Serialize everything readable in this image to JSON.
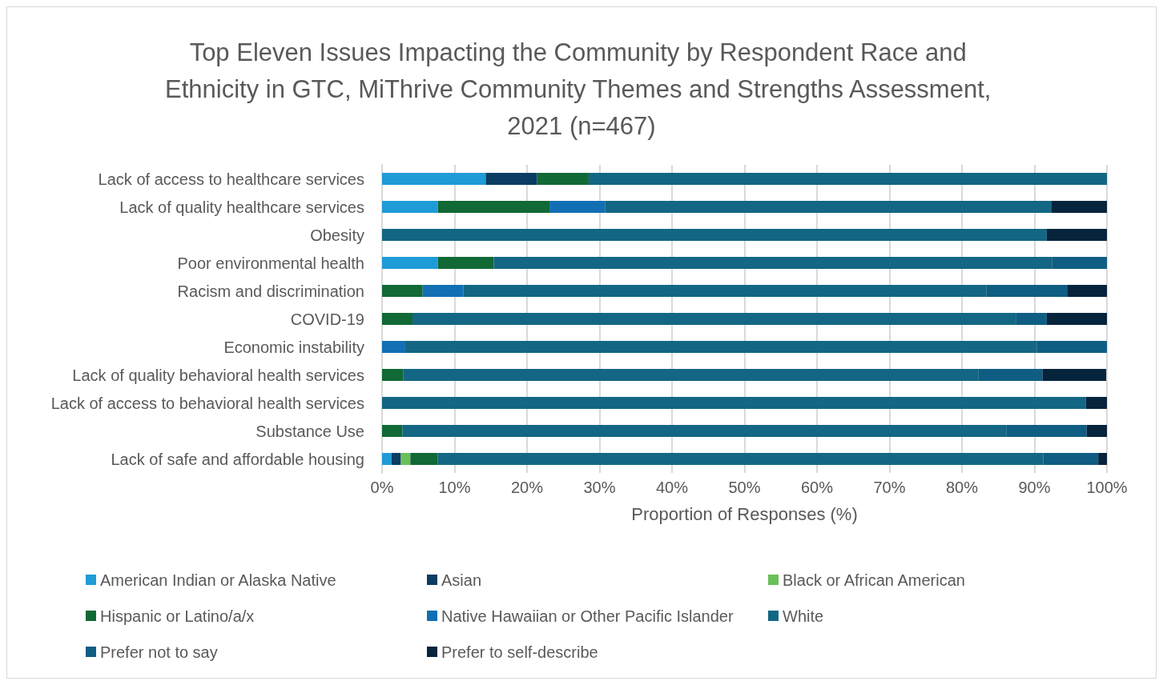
{
  "chart_data": {
    "type": "bar",
    "orientation": "horizontal",
    "stacked": true,
    "title": "Top Eleven Issues Impacting the Community by Respondent Race and Ethnicity in GTC, MiThrive Community Themes and Strengths Assessment, 2021 (n=467)",
    "xlabel": "Proportion of Responses (%)",
    "categories": [
      "Lack of access to healthcare services",
      "Lack of quality healthcare services",
      "Obesity",
      "Poor environmental health",
      "Racism and discrimination",
      "COVID-19",
      "Economic instability",
      "Lack of quality behavioral health services",
      "Lack of access to behavioral health services",
      "Substance Use",
      "Lack of safe and affordable housing"
    ],
    "series": [
      {
        "name": "American Indian or Alaska Native",
        "color": "#1f9bd7",
        "values": [
          14.3,
          7.7,
          0,
          7.7,
          0,
          0,
          0,
          0,
          0,
          0,
          1.3
        ]
      },
      {
        "name": "Asian",
        "color": "#0b3d63",
        "values": [
          7.1,
          0,
          0,
          0,
          0,
          0,
          0,
          0,
          0,
          0,
          1.3
        ]
      },
      {
        "name": "Black or African American",
        "color": "#6abf59",
        "values": [
          0,
          0,
          0,
          0,
          0,
          0,
          0,
          0,
          0,
          0,
          1.3
        ]
      },
      {
        "name": "Hispanic or Latino/a/x",
        "color": "#116935",
        "values": [
          7.1,
          15.4,
          0,
          7.7,
          5.6,
          4.2,
          0,
          2.9,
          0,
          2.8,
          3.8
        ]
      },
      {
        "name": "Native Hawaiian or Other Pacific Islander",
        "color": "#136fb3",
        "values": [
          0,
          7.7,
          0,
          0,
          5.6,
          0,
          3.2,
          0,
          0,
          0,
          0
        ]
      },
      {
        "name": "White",
        "color": "#136784",
        "values": [
          71.5,
          61.5,
          91.7,
          77,
          72.2,
          83.3,
          87.1,
          79.4,
          97.1,
          83.3,
          83.5
        ]
      },
      {
        "name": "Prefer not to say",
        "color": "#105d84",
        "values": [
          0,
          0,
          0,
          7.7,
          11.1,
          4.2,
          9.7,
          8.8,
          0,
          11.1,
          7.6
        ]
      },
      {
        "name": "Prefer to self-describe",
        "color": "#07243d",
        "values": [
          0,
          7.7,
          8.3,
          0,
          5.6,
          8.3,
          0,
          8.8,
          2.9,
          2.8,
          1.3
        ]
      }
    ],
    "xlim": [
      0,
      100
    ],
    "xticks": [
      {
        "value": 0,
        "label": "0%"
      },
      {
        "value": 10,
        "label": "10%"
      },
      {
        "value": 20,
        "label": "20%"
      },
      {
        "value": 30,
        "label": "30%"
      },
      {
        "value": 40,
        "label": "40%"
      },
      {
        "value": 50,
        "label": "50%"
      },
      {
        "value": 60,
        "label": "60%"
      },
      {
        "value": 70,
        "label": "70%"
      },
      {
        "value": 80,
        "label": "80%"
      },
      {
        "value": 90,
        "label": "90%"
      },
      {
        "value": 100,
        "label": "100%"
      }
    ],
    "grid": "x",
    "legend": "bottom"
  }
}
